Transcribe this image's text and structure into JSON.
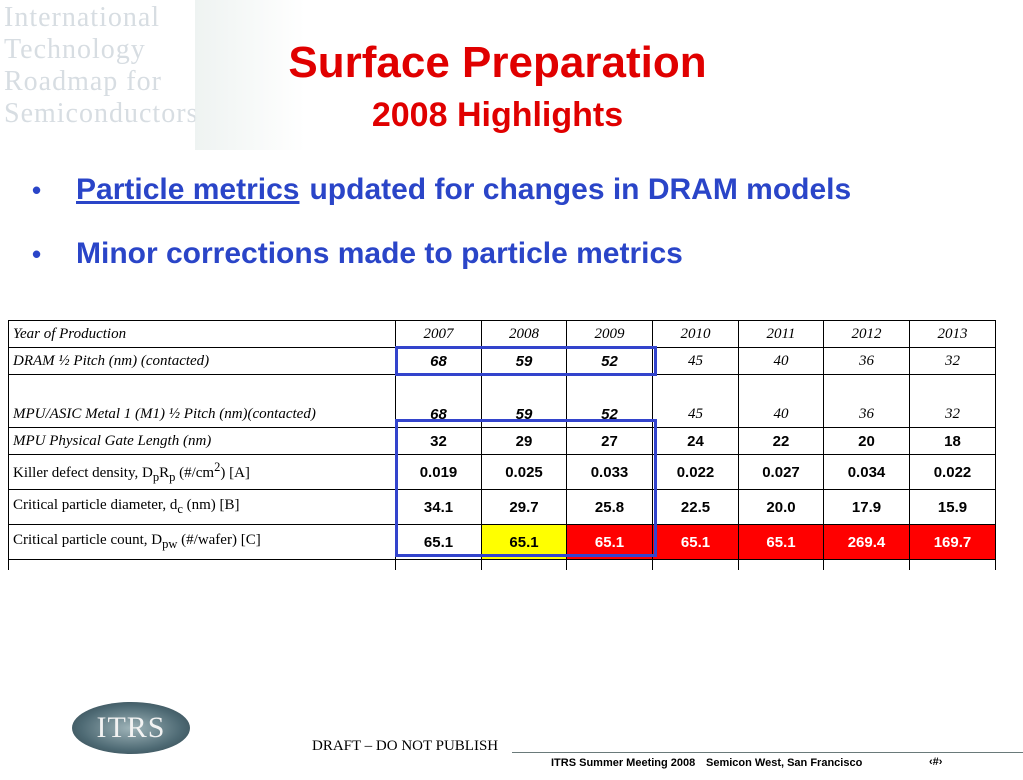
{
  "background": {
    "logo_words": [
      "International",
      "Technology",
      "Roadmap for",
      "Semiconductors"
    ]
  },
  "title": {
    "main": "Surface Preparation",
    "sub": "2008 Highlights"
  },
  "bullets": [
    {
      "link": "Particle metrics",
      "text": "updated for changes in DRAM models"
    },
    {
      "link": "",
      "text": "Minor corrections made to particle metrics"
    }
  ],
  "table": {
    "header": {
      "label": "Year of Production",
      "years": [
        "2007",
        "2008",
        "2009",
        "2010",
        "2011",
        "2012",
        "2013"
      ]
    },
    "dram": {
      "label": "DRAM ½ Pitch (nm) (contacted)",
      "values": [
        "68",
        "59",
        "52",
        "45",
        "40",
        "36",
        "32"
      ]
    },
    "mpu_m1": {
      "label": "MPU/ASIC Metal 1 (M1) ½ Pitch (nm)(contacted)",
      "values": [
        "68",
        "59",
        "52",
        "45",
        "40",
        "36",
        "32"
      ]
    },
    "gate": {
      "label": "MPU Physical Gate Length (nm)",
      "values": [
        "32",
        "29",
        "27",
        "24",
        "22",
        "20",
        "18"
      ]
    },
    "killer": {
      "label_pre": "Killer defect density, D",
      "sub1": "p",
      "mid1": "R",
      "sub2": "p",
      "mid2": " (#/cm",
      "sup": "2",
      "label_post": ") [A]",
      "values": [
        "0.019",
        "0.025",
        "0.033",
        "0.022",
        "0.027",
        "0.034",
        "0.022"
      ]
    },
    "diameter": {
      "label_pre": "Critical particle diameter, d",
      "sub": "c",
      "label_post": " (nm) [B]",
      "values": [
        "34.1",
        "29.7",
        "25.8",
        "22.5",
        "20.0",
        "17.9",
        "15.9"
      ]
    },
    "count": {
      "label_pre": "Critical particle count, D",
      "sub": "pw",
      "label_post": " (#/wafer) [C]",
      "values": [
        "65.1",
        "65.1",
        "65.1",
        "65.1",
        "65.1",
        "269.4",
        "169.7"
      ]
    }
  },
  "colors": {
    "title": "#e00000",
    "bullet": "#2a45c8",
    "highlight_box": "#3344cc",
    "yellow_cell": "#ffff00",
    "red_cell": "#ff0000"
  },
  "footer": {
    "logo": "ITRS",
    "draft": "DRAFT – DO NOT PUBLISH",
    "meeting": "ITRS Summer Meeting  2008",
    "location": "Semicon West, San Francisco",
    "page": "‹#›"
  }
}
